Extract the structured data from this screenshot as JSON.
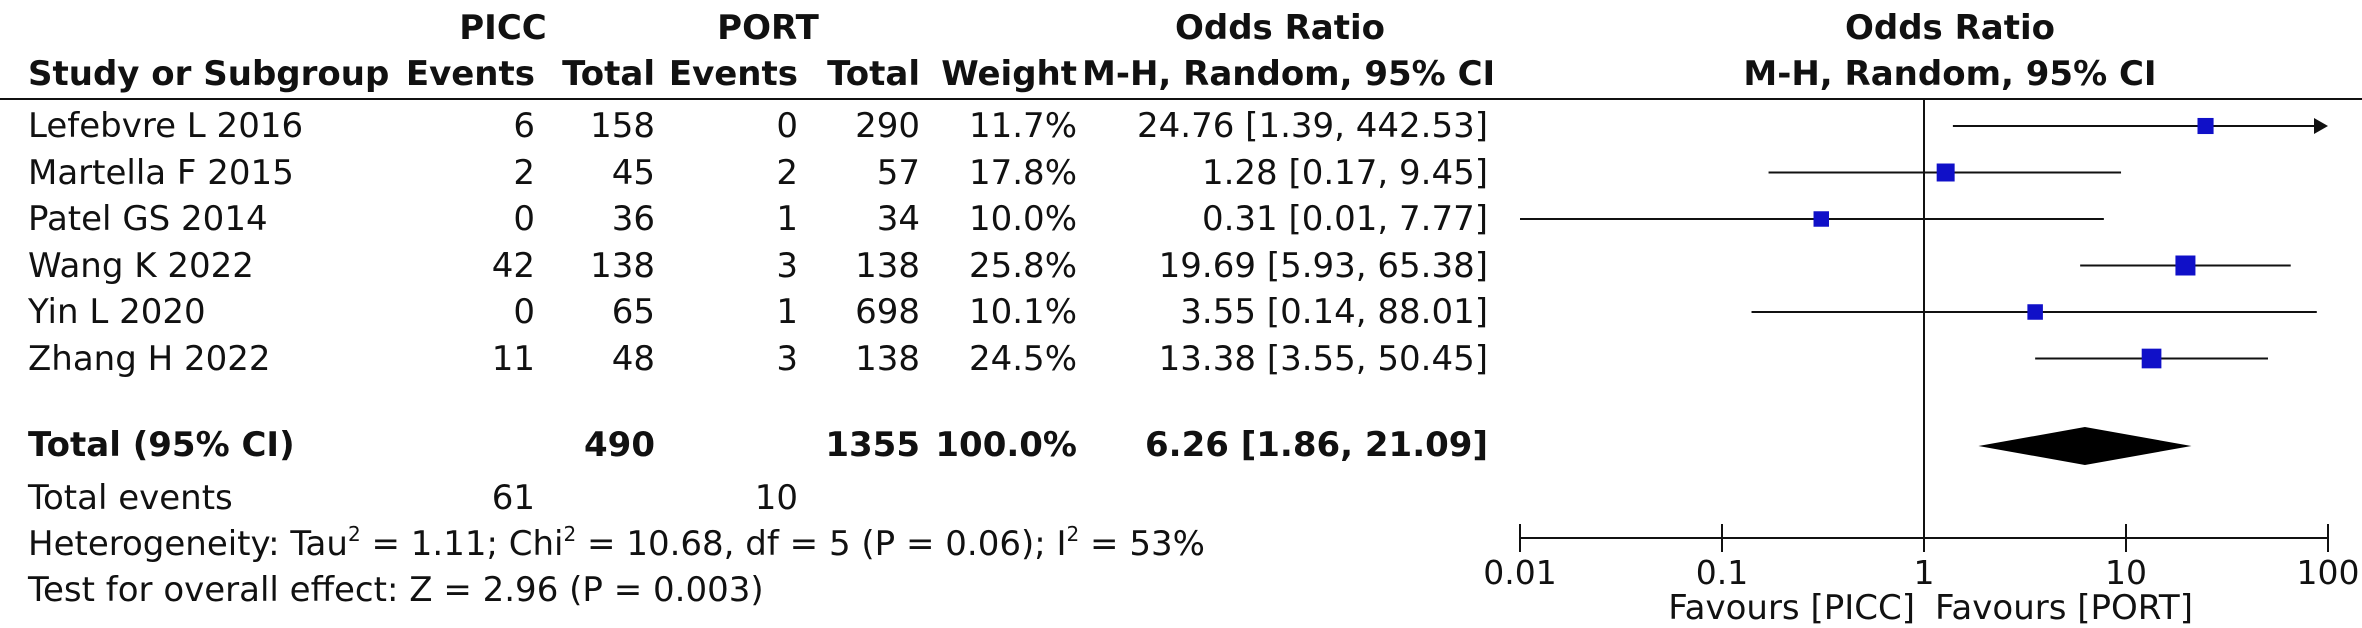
{
  "headers": {
    "group1": "PICC",
    "group2": "PORT",
    "or_title": "Odds Ratio",
    "study": "Study or Subgroup",
    "events": "Events",
    "total": "Total",
    "weight": "Weight",
    "or_method": "M-H, Random, 95% CI",
    "plot_title": "Odds Ratio",
    "plot_method": "M-H, Random, 95% CI"
  },
  "studies": [
    {
      "name": "Lefebvre L 2016",
      "e1": "6",
      "t1": "158",
      "e2": "0",
      "t2": "290",
      "weight": "11.7%",
      "ci_text": "24.76 [1.39, 442.53]"
    },
    {
      "name": "Martella F 2015",
      "e1": "2",
      "t1": "45",
      "e2": "2",
      "t2": "57",
      "weight": "17.8%",
      "ci_text": "1.28 [0.17, 9.45]"
    },
    {
      "name": "Patel GS 2014",
      "e1": "0",
      "t1": "36",
      "e2": "1",
      "t2": "34",
      "weight": "10.0%",
      "ci_text": "0.31 [0.01, 7.77]"
    },
    {
      "name": "Wang K 2022",
      "e1": "42",
      "t1": "138",
      "e2": "3",
      "t2": "138",
      "weight": "25.8%",
      "ci_text": "19.69 [5.93, 65.38]"
    },
    {
      "name": "Yin L 2020",
      "e1": "0",
      "t1": "65",
      "e2": "1",
      "t2": "698",
      "weight": "10.1%",
      "ci_text": "3.55 [0.14, 88.01]"
    },
    {
      "name": "Zhang H 2022",
      "e1": "11",
      "t1": "48",
      "e2": "3",
      "t2": "138",
      "weight": "24.5%",
      "ci_text": "13.38 [3.55, 50.45]"
    }
  ],
  "total": {
    "label": "Total (95% CI)",
    "t1": "490",
    "t2": "1355",
    "weight": "100.0%",
    "ci_text": "6.26 [1.86, 21.09]"
  },
  "total_events": {
    "label": "Total events",
    "e1": "61",
    "e2": "10"
  },
  "heterogeneity": {
    "p1": "Heterogeneity: Tau",
    "p2": " = 1.11; Chi",
    "p3": " = 10.68, df = 5 (P = 0.06); I",
    "p4": " = 53%",
    "sup": "2"
  },
  "overall_effect": "Test for overall effect: Z = 2.96 (P = 0.003)",
  "favours_left": "Favours [PICC]",
  "favours_right": "Favours [PORT]",
  "colors": {
    "marker": "#1010c8",
    "line": "#111111",
    "diamond": "#000000"
  },
  "chart_data": {
    "type": "forest",
    "x_scale": "log",
    "xlim": [
      0.01,
      100
    ],
    "x_ticks": [
      0.01,
      0.1,
      1,
      10,
      100
    ],
    "x_tick_labels": [
      "0.01",
      "0.1",
      "1",
      "10",
      "100"
    ],
    "reference_line": 1,
    "series": [
      {
        "name": "Lefebvre L 2016",
        "or": 24.76,
        "lower": 1.39,
        "upper": 442.53,
        "weight": 11.7
      },
      {
        "name": "Martella F 2015",
        "or": 1.28,
        "lower": 0.17,
        "upper": 9.45,
        "weight": 17.8
      },
      {
        "name": "Patel GS 2014",
        "or": 0.31,
        "lower": 0.01,
        "upper": 7.77,
        "weight": 10.0
      },
      {
        "name": "Wang K 2022",
        "or": 19.69,
        "lower": 5.93,
        "upper": 65.38,
        "weight": 25.8
      },
      {
        "name": "Yin L 2020",
        "or": 3.55,
        "lower": 0.14,
        "upper": 88.01,
        "weight": 10.1
      },
      {
        "name": "Zhang H 2022",
        "or": 13.38,
        "lower": 3.55,
        "upper": 50.45,
        "weight": 24.5
      }
    ],
    "pooled": {
      "name": "Total (95% CI)",
      "or": 6.26,
      "lower": 1.86,
      "upper": 21.09
    }
  }
}
